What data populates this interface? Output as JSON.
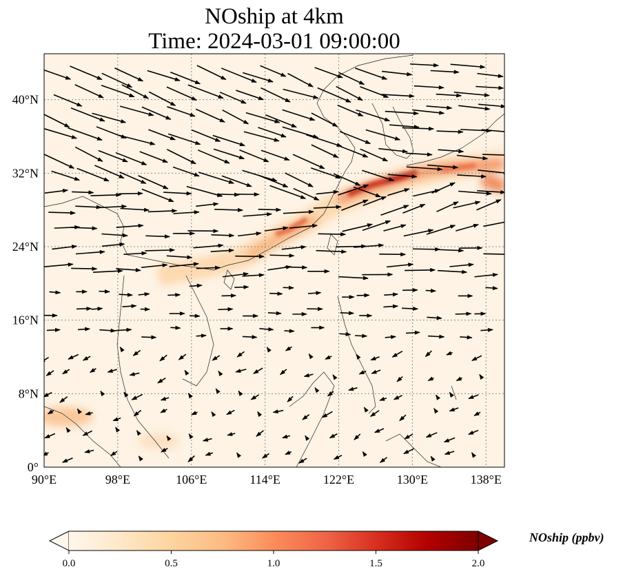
{
  "title": {
    "line1": "NOship at 4km",
    "line2": "Time: 2024-03-01 09:00:00"
  },
  "map": {
    "projection": "PlateCarree",
    "extent": {
      "lon_min": 90,
      "lon_max": 140,
      "lat_min": 0,
      "lat_max": 45
    },
    "gridlines": "dotted",
    "lon_ticks": [
      {
        "value": 90,
        "label": "90°E"
      },
      {
        "value": 98,
        "label": "98°E"
      },
      {
        "value": 106,
        "label": "106°E"
      },
      {
        "value": 114,
        "label": "114°E"
      },
      {
        "value": 122,
        "label": "122°E"
      },
      {
        "value": 130,
        "label": "130°E"
      },
      {
        "value": 138,
        "label": "138°E"
      }
    ],
    "lat_ticks": [
      {
        "value": 0,
        "label": "0°"
      },
      {
        "value": 8,
        "label": "8°N"
      },
      {
        "value": 16,
        "label": "16°N"
      },
      {
        "value": 24,
        "label": "24°N"
      },
      {
        "value": 32,
        "label": "32°N"
      },
      {
        "value": 40,
        "label": "40°N"
      }
    ],
    "field_description": "Highest NOship concentrations along the shipping lane from South China coast (~115°E, 25°N) through East China Sea to south of Korea/Japan (~130°E, 31°N); lower values near Malacca Strait (~92°E, 6°N).",
    "wind_vectors_description": "Strong westerlies/northwesterlies north of ~20°N, weak variable winds over South China Sea and Southeast Asia."
  },
  "colorbar": {
    "label": "NOship (ppbv)",
    "colormap": "OrRd",
    "min": 0.0,
    "max": 2.0,
    "extend": "both",
    "ticks": [
      {
        "value": 0.0,
        "label": "0.0"
      },
      {
        "value": 0.5,
        "label": "0.5"
      },
      {
        "value": 1.0,
        "label": "1.0"
      },
      {
        "value": 1.5,
        "label": "1.5"
      },
      {
        "value": 2.0,
        "label": "2.0"
      }
    ],
    "colors": [
      "#fff7ec",
      "#fee8c8",
      "#fdd49e",
      "#fdbb84",
      "#fc8d59",
      "#ef6548",
      "#d7301f",
      "#b30000",
      "#7f0000"
    ]
  }
}
